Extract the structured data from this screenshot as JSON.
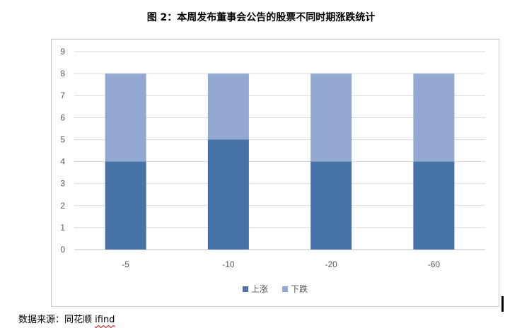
{
  "title": "图 2：本周发布董事会公告的股票不同时期涨跌统计",
  "source": {
    "label": "数据来源：同花顺 ",
    "brand": "ifind"
  },
  "chart_data": {
    "type": "bar",
    "stacked": true,
    "categories": [
      "-5",
      "-10",
      "-20",
      "-60"
    ],
    "series": [
      {
        "name": "上涨",
        "values": [
          4,
          5,
          4,
          4
        ],
        "color": "#4672a8"
      },
      {
        "name": "下跌",
        "values": [
          4,
          3,
          4,
          4
        ],
        "color": "#94a9d1"
      }
    ],
    "ylim": [
      0,
      9
    ],
    "yticks": [
      "0",
      "1",
      "2",
      "3",
      "4",
      "5",
      "6",
      "7",
      "8",
      "9"
    ],
    "grid": true,
    "legend_position": "bottom"
  }
}
